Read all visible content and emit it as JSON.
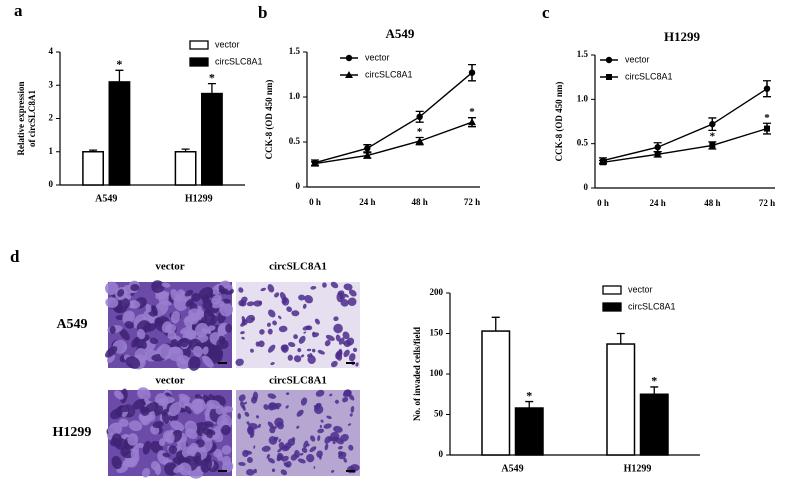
{
  "chart_data": [
    {
      "type": "bar",
      "panel": "a",
      "ylabel": [
        "Relative expression",
        "of circSLC8A1"
      ],
      "categories": [
        "A549",
        "H1299"
      ],
      "series": [
        {
          "name": "vector",
          "color": "#ffffff",
          "values": [
            1.0,
            1.0
          ],
          "errors": [
            0.05,
            0.08
          ],
          "annotations": [
            null,
            null
          ]
        },
        {
          "name": "circSLC8A1",
          "color": "#000000",
          "values": [
            3.1,
            2.75
          ],
          "errors": [
            0.35,
            0.3
          ],
          "annotations": [
            "*",
            "*"
          ]
        }
      ],
      "ylim": [
        0,
        4
      ],
      "yticks": [
        0,
        1,
        2,
        3,
        4
      ],
      "legend": "top-right"
    },
    {
      "type": "line",
      "panel": "b",
      "title": "A549",
      "ylabel": "CCK-8 (OD 450 nm)",
      "categories": [
        "0 h",
        "24 h",
        "48 h",
        "72 h"
      ],
      "series": [
        {
          "name": "vector",
          "color": "#000000",
          "marker": "circle",
          "values": [
            0.27,
            0.43,
            0.78,
            1.27
          ],
          "errors": [
            0.03,
            0.04,
            0.06,
            0.09
          ],
          "annotations": [
            null,
            null,
            null,
            null
          ]
        },
        {
          "name": "circSLC8A1",
          "color": "#000000",
          "marker": "triangle",
          "values": [
            0.26,
            0.35,
            0.51,
            0.72
          ],
          "errors": [
            0.02,
            0.03,
            0.04,
            0.05
          ],
          "annotations": [
            null,
            null,
            "*",
            "*"
          ]
        }
      ],
      "ylim": [
        0,
        1.5
      ],
      "yticks": [
        0,
        0.5,
        {
          "value": 1,
          "label": "1.0"
        },
        1.5
      ],
      "legend": "top-left"
    },
    {
      "type": "line",
      "panel": "c",
      "title": "H1299",
      "ylabel": "CCK-8 (OD 450 nm)",
      "categories": [
        "0 h",
        "24 h",
        "48 h",
        "72 h"
      ],
      "series": [
        {
          "name": "vector",
          "color": "#000000",
          "marker": "circle",
          "values": [
            0.31,
            0.46,
            0.72,
            1.12
          ],
          "errors": [
            0.03,
            0.05,
            0.07,
            0.09
          ],
          "annotations": [
            null,
            null,
            null,
            null
          ]
        },
        {
          "name": "circSLC8A1",
          "color": "#000000",
          "marker": "square",
          "values": [
            0.29,
            0.38,
            0.48,
            0.67
          ],
          "errors": [
            0.02,
            0.03,
            0.04,
            0.06
          ],
          "annotations": [
            null,
            null,
            "*",
            "*"
          ]
        }
      ],
      "ylim": [
        0,
        1.5
      ],
      "yticks": [
        0,
        0.5,
        {
          "value": 1,
          "label": "1.0"
        },
        1.5
      ],
      "legend": "top-left"
    },
    {
      "type": "bar",
      "ylabel": "No. of invaded cells/field",
      "categories": [
        "A549",
        "H1299"
      ],
      "series": [
        {
          "name": "vector",
          "color": "#ffffff",
          "values": [
            153,
            137
          ],
          "errors": [
            17,
            13
          ],
          "annotations": [
            null,
            null
          ]
        },
        {
          "name": "circSLC8A1",
          "color": "#000000",
          "values": [
            58,
            75
          ],
          "errors": [
            8,
            9
          ],
          "annotations": [
            "*",
            "*"
          ]
        }
      ],
      "ylim": [
        0,
        200
      ],
      "yticks": [
        0,
        50,
        100,
        150,
        200
      ],
      "legend": "top-right"
    }
  ],
  "micrographs": {
    "panel": "d",
    "rows": [
      {
        "label": "A549",
        "columns": [
          "vector",
          "circSLC8A1"
        ]
      },
      {
        "label": "H1299",
        "columns": [
          "vector",
          "circSLC8A1"
        ]
      }
    ]
  }
}
